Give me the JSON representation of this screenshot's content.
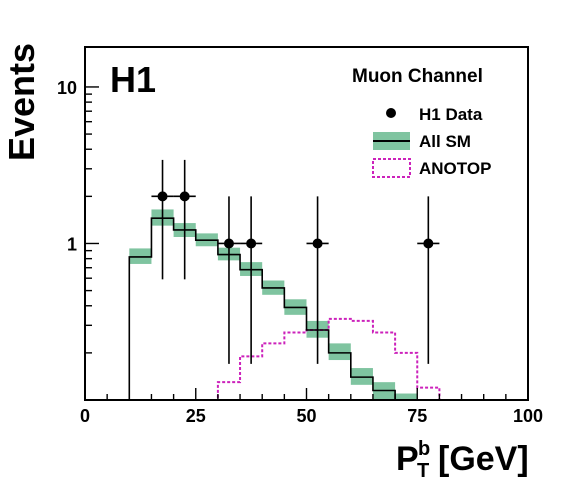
{
  "chart_data": {
    "type": "histogram",
    "experiment_label": "H1",
    "channel_label": "Muon Channel",
    "xlabel_main": "P",
    "xlabel_sub": "T",
    "xlabel_sup": "b",
    "xlabel_unit": "[GeV]",
    "ylabel": "Events",
    "xlim": [
      0,
      100
    ],
    "ylim": [
      0.1,
      18
    ],
    "ylog": true,
    "x_ticks": [
      0,
      25,
      50,
      75,
      100
    ],
    "x_tick_labels": [
      "0",
      "25",
      "50",
      "75",
      "100"
    ],
    "y_ticks": [
      1,
      10
    ],
    "y_tick_labels": [
      "1",
      "10"
    ],
    "bin_edges": [
      0,
      5,
      10,
      15,
      20,
      25,
      30,
      35,
      40,
      45,
      50,
      55,
      60,
      65,
      70,
      75,
      80,
      85,
      90,
      95,
      100
    ],
    "legend": {
      "placement": "top-right",
      "data": "H1 Data",
      "sm": "All SM",
      "signal": "ANOTOP"
    },
    "sm_prediction": {
      "name": "All SM",
      "values": [
        0,
        0,
        0.82,
        1.45,
        1.22,
        1.05,
        0.85,
        0.68,
        0.52,
        0.39,
        0.28,
        0.2,
        0.14,
        0.115,
        0.1,
        0,
        0,
        0,
        0,
        0
      ],
      "band_low": [
        0,
        0,
        0.74,
        1.3,
        1.1,
        0.96,
        0.78,
        0.62,
        0.47,
        0.35,
        0.25,
        0.18,
        0.125,
        0.1,
        0.09,
        0,
        0,
        0,
        0,
        0
      ],
      "band_high": [
        0,
        0,
        0.93,
        1.65,
        1.35,
        1.16,
        0.94,
        0.76,
        0.58,
        0.44,
        0.32,
        0.23,
        0.16,
        0.13,
        0.11,
        0,
        0,
        0,
        0,
        0
      ],
      "color": "#7fc4a0",
      "line_color": "#000000"
    },
    "signal": {
      "name": "ANOTOP",
      "values": [
        0,
        0,
        0,
        0,
        0,
        0,
        0.13,
        0.19,
        0.23,
        0.27,
        0.28,
        0.33,
        0.32,
        0.27,
        0.2,
        0.12,
        0,
        0,
        0,
        0
      ],
      "color": "#cc22bb"
    },
    "data_points": {
      "name": "H1 Data",
      "x": [
        17.5,
        22.5,
        32.5,
        37.5,
        52.5,
        77.5
      ],
      "y": [
        2,
        2,
        1,
        1,
        1,
        1
      ],
      "x_err": 2.5,
      "y_err_low": [
        1.41,
        1.41,
        0.83,
        0.83,
        0.83,
        0.83
      ],
      "y_err_high": [
        1.42,
        1.42,
        1.0,
        1.0,
        1.0,
        1.0
      ],
      "color": "#000000"
    }
  }
}
